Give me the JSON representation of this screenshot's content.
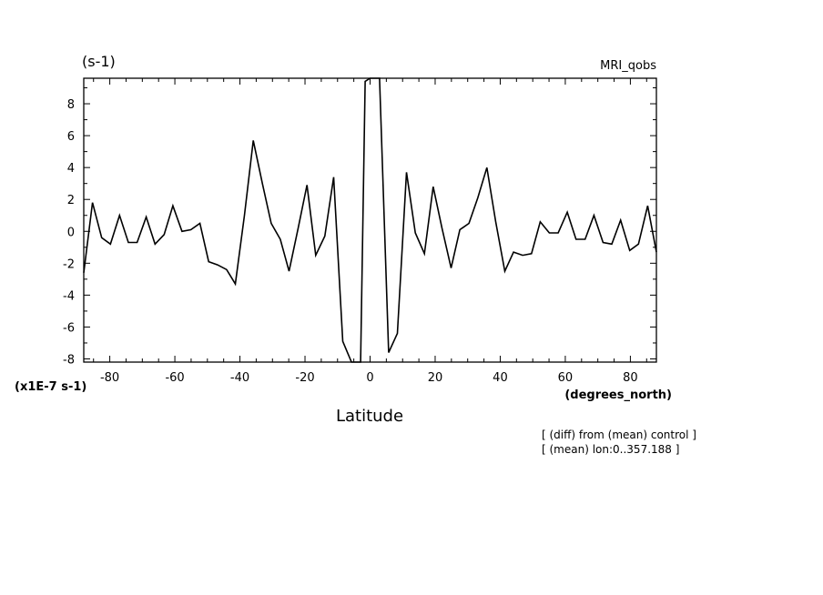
{
  "chart_data": {
    "type": "line",
    "title": "MRI_qobs",
    "units_top": "(s-1)",
    "units_multiplier": "(x1E-7 s-1)",
    "xlabel": "Latitude",
    "xunits": "(degrees_north)",
    "notes": [
      "[ (diff) from (mean) control ]",
      "[ (mean) lon:0..357.188 ]"
    ],
    "xlim": [
      -88,
      88
    ],
    "ylim": [
      -8.2,
      9.6
    ],
    "xticks": [
      -80,
      -60,
      -40,
      -20,
      0,
      20,
      40,
      60,
      80
    ],
    "xtick_labels": [
      "-80",
      "-60",
      "-40",
      "-20",
      "0",
      "20",
      "40",
      "60",
      "80"
    ],
    "yticks": [
      -8,
      -6,
      -4,
      -2,
      0,
      2,
      4,
      6,
      8
    ],
    "ytick_labels": [
      "-8",
      "-6",
      "-4",
      "-2",
      "0",
      "2",
      "4",
      "6",
      "8"
    ],
    "grid": false,
    "series": [
      {
        "color": "#000000",
        "x": [
          -88.0,
          -85.3,
          -82.5,
          -79.8,
          -77.0,
          -74.3,
          -71.6,
          -68.8,
          -66.1,
          -63.3,
          -60.6,
          -57.8,
          -55.1,
          -52.3,
          -49.6,
          -46.9,
          -44.1,
          -41.4,
          -38.6,
          -35.9,
          -33.1,
          -30.4,
          -27.6,
          -24.9,
          -22.1,
          -19.4,
          -16.7,
          -13.9,
          -11.2,
          -8.4,
          -5.7,
          -2.9,
          -1.5,
          0.0,
          1.5,
          2.9,
          5.7,
          8.4,
          11.2,
          13.9,
          16.7,
          19.4,
          22.1,
          24.9,
          27.6,
          30.4,
          33.1,
          35.9,
          38.6,
          41.4,
          44.1,
          46.9,
          49.6,
          52.3,
          55.1,
          57.8,
          60.6,
          63.3,
          66.1,
          68.8,
          71.6,
          74.3,
          77.0,
          79.8,
          82.5,
          85.3,
          88.0
        ],
        "values": [
          -2.6,
          1.8,
          -0.4,
          -0.8,
          1.0,
          -0.7,
          -0.7,
          0.9,
          -0.8,
          -0.2,
          1.6,
          0.0,
          0.1,
          0.5,
          -1.9,
          -2.1,
          -2.4,
          -3.3,
          1.0,
          5.7,
          3.0,
          0.5,
          -0.5,
          -2.5,
          0.2,
          2.9,
          -1.5,
          -0.3,
          3.4,
          -6.9,
          -8.2,
          -8.2,
          9.4,
          9.6,
          9.6,
          9.6,
          -7.6,
          -6.4,
          3.7,
          -0.1,
          -1.4,
          2.8,
          0.2,
          -2.3,
          0.1,
          0.5,
          2.1,
          4.0,
          0.6,
          -2.5,
          -1.3,
          -1.5,
          -1.4,
          0.6,
          -0.1,
          -0.1,
          1.2,
          -0.5,
          -0.5,
          1.0,
          -0.7,
          -0.8,
          0.7,
          -1.2,
          -0.8,
          1.6,
          -1.3
        ]
      }
    ]
  }
}
